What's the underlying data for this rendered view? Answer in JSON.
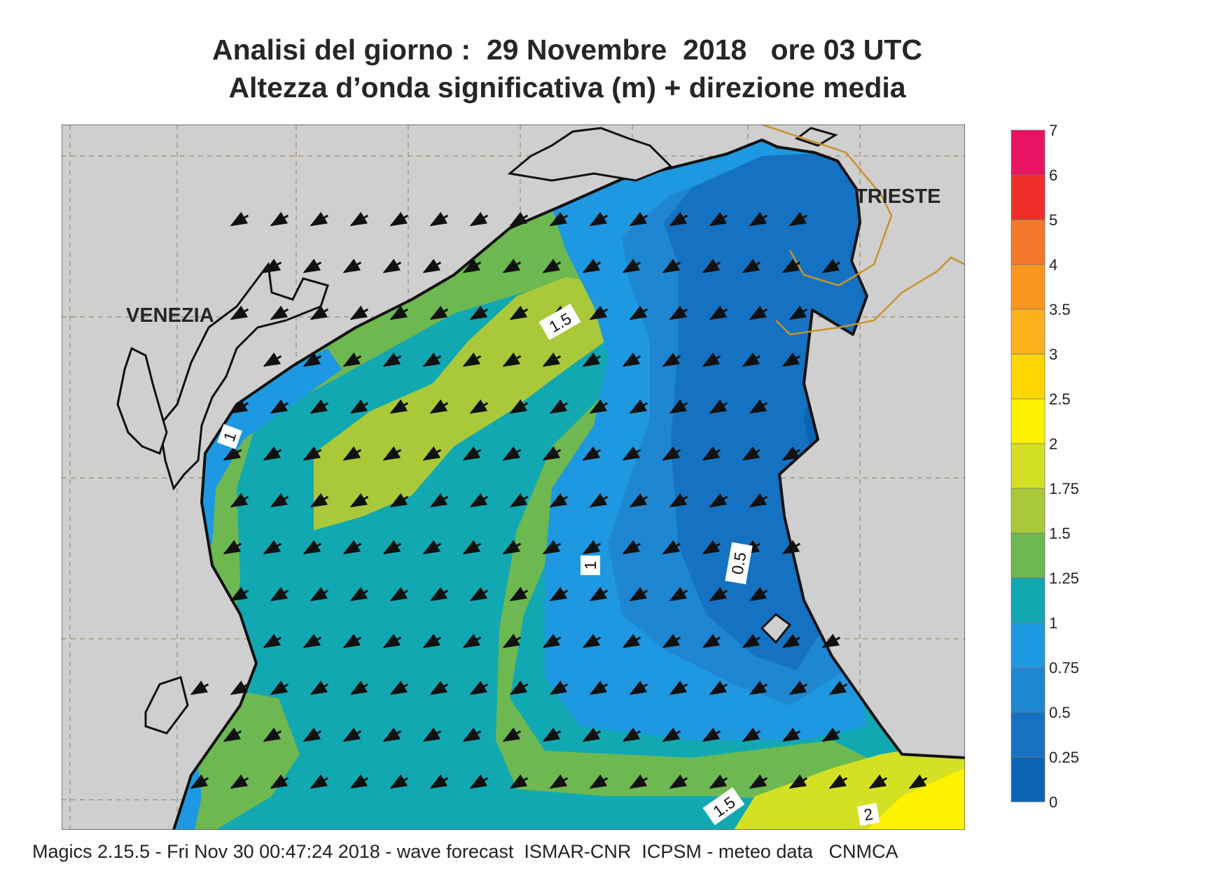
{
  "title_line1": "Analisi del giorno :  29 Novembre  2018   ore 03 UTC",
  "title_line2": "Altezza d’onda significativa (m) + direzione media",
  "footer": "Magics 2.15.5 - Fri Nov 30 00:47:24 2018 - wave forecast  ISMAR-CNR  ICPSM - meteo data   CNMCA",
  "places": {
    "venezia": "VENEZIA",
    "trieste": "TRIESTE"
  },
  "contour_labels": {
    "c15_top": "1.5",
    "c1_left": "1",
    "c1_center": "1",
    "c05": "0.5",
    "c15_bottom": "1.5",
    "c2": "2"
  },
  "legend": {
    "levels": [
      "0",
      "0.25",
      "0.5",
      "0.75",
      "1",
      "1.25",
      "1.5",
      "1.75",
      "2",
      "2.5",
      "3",
      "3.5",
      "4",
      "5",
      "6",
      "7"
    ],
    "colors": [
      "#0a63b4",
      "#1572c2",
      "#1f86d2",
      "#1e98e0",
      "#11a8b2",
      "#6db851",
      "#a9c93a",
      "#d4e024",
      "#fff200",
      "#fed700",
      "#fcb11e",
      "#f8961e",
      "#f4782b",
      "#ed2e2b",
      "#ea1262"
    ]
  },
  "arrow_direction": "toward south-west"
}
